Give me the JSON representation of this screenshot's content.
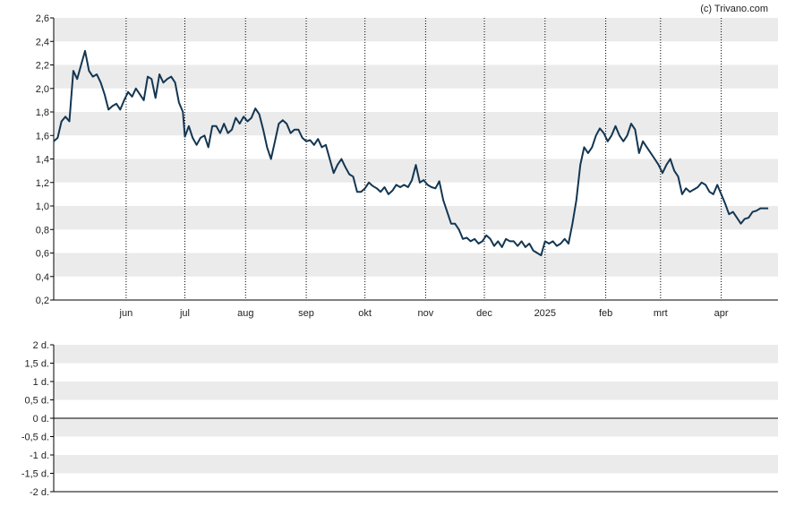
{
  "copyright": "(c) Trivano.com",
  "colors": {
    "line": "#133652",
    "band": "#ebebeb",
    "axis": "#000000",
    "vgrid": "#000000"
  },
  "chart_data": [
    {
      "type": "line",
      "name": "price",
      "ylim": [
        0.2,
        2.6
      ],
      "y_ticks": [
        "0,2",
        "0,4",
        "0,6",
        "0,8",
        "1,0",
        "1,2",
        "1,4",
        "1,6",
        "1,8",
        "2,0",
        "2,2",
        "2,4",
        "2,6"
      ],
      "x_range": [
        "2024-04-25",
        "2025-04-30"
      ],
      "x_ticks": [
        {
          "label": "jun",
          "date": "2024-06-01"
        },
        {
          "label": "jul",
          "date": "2024-07-01"
        },
        {
          "label": "aug",
          "date": "2024-08-01"
        },
        {
          "label": "sep",
          "date": "2024-09-01"
        },
        {
          "label": "okt",
          "date": "2024-10-01"
        },
        {
          "label": "nov",
          "date": "2024-11-01"
        },
        {
          "label": "dec",
          "date": "2024-12-01"
        },
        {
          "label": "2025",
          "date": "2025-01-01"
        },
        {
          "label": "feb",
          "date": "2025-02-01"
        },
        {
          "label": "mrt",
          "date": "2025-03-01"
        },
        {
          "label": "apr",
          "date": "2025-04-01"
        }
      ],
      "grid": "alternating horizontal bands, dotted vertical month lines",
      "points": [
        [
          "2024-04-25",
          1.55
        ],
        [
          "2024-04-27",
          1.58
        ],
        [
          "2024-04-29",
          1.72
        ],
        [
          "2024-05-01",
          1.76
        ],
        [
          "2024-05-03",
          1.72
        ],
        [
          "2024-05-05",
          2.15
        ],
        [
          "2024-05-07",
          2.08
        ],
        [
          "2024-05-09",
          2.2
        ],
        [
          "2024-05-11",
          2.32
        ],
        [
          "2024-05-13",
          2.15
        ],
        [
          "2024-05-15",
          2.1
        ],
        [
          "2024-05-17",
          2.12
        ],
        [
          "2024-05-19",
          2.05
        ],
        [
          "2024-05-21",
          1.95
        ],
        [
          "2024-05-23",
          1.82
        ],
        [
          "2024-05-25",
          1.85
        ],
        [
          "2024-05-27",
          1.87
        ],
        [
          "2024-05-29",
          1.82
        ],
        [
          "2024-05-31",
          1.9
        ],
        [
          "2024-06-02",
          1.97
        ],
        [
          "2024-06-04",
          1.93
        ],
        [
          "2024-06-06",
          2.0
        ],
        [
          "2024-06-08",
          1.95
        ],
        [
          "2024-06-10",
          1.9
        ],
        [
          "2024-06-12",
          2.1
        ],
        [
          "2024-06-14",
          2.08
        ],
        [
          "2024-06-16",
          1.92
        ],
        [
          "2024-06-18",
          2.12
        ],
        [
          "2024-06-20",
          2.05
        ],
        [
          "2024-06-22",
          2.08
        ],
        [
          "2024-06-24",
          2.1
        ],
        [
          "2024-06-26",
          2.05
        ],
        [
          "2024-06-28",
          1.88
        ],
        [
          "2024-06-30",
          1.8
        ],
        [
          "2024-07-01",
          1.59
        ],
        [
          "2024-07-03",
          1.68
        ],
        [
          "2024-07-05",
          1.58
        ],
        [
          "2024-07-07",
          1.52
        ],
        [
          "2024-07-09",
          1.58
        ],
        [
          "2024-07-11",
          1.6
        ],
        [
          "2024-07-13",
          1.5
        ],
        [
          "2024-07-15",
          1.68
        ],
        [
          "2024-07-17",
          1.68
        ],
        [
          "2024-07-19",
          1.62
        ],
        [
          "2024-07-21",
          1.7
        ],
        [
          "2024-07-23",
          1.62
        ],
        [
          "2024-07-25",
          1.65
        ],
        [
          "2024-07-27",
          1.75
        ],
        [
          "2024-07-29",
          1.7
        ],
        [
          "2024-07-31",
          1.76
        ],
        [
          "2024-08-02",
          1.72
        ],
        [
          "2024-08-04",
          1.75
        ],
        [
          "2024-08-06",
          1.83
        ],
        [
          "2024-08-08",
          1.78
        ],
        [
          "2024-08-10",
          1.65
        ],
        [
          "2024-08-12",
          1.5
        ],
        [
          "2024-08-14",
          1.4
        ],
        [
          "2024-08-16",
          1.55
        ],
        [
          "2024-08-18",
          1.7
        ],
        [
          "2024-08-20",
          1.73
        ],
        [
          "2024-08-22",
          1.7
        ],
        [
          "2024-08-24",
          1.62
        ],
        [
          "2024-08-26",
          1.65
        ],
        [
          "2024-08-28",
          1.65
        ],
        [
          "2024-08-30",
          1.58
        ],
        [
          "2024-09-01",
          1.55
        ],
        [
          "2024-09-03",
          1.56
        ],
        [
          "2024-09-05",
          1.52
        ],
        [
          "2024-09-07",
          1.57
        ],
        [
          "2024-09-09",
          1.5
        ],
        [
          "2024-09-11",
          1.52
        ],
        [
          "2024-09-13",
          1.4
        ],
        [
          "2024-09-15",
          1.28
        ],
        [
          "2024-09-17",
          1.35
        ],
        [
          "2024-09-19",
          1.4
        ],
        [
          "2024-09-21",
          1.33
        ],
        [
          "2024-09-23",
          1.27
        ],
        [
          "2024-09-25",
          1.25
        ],
        [
          "2024-09-27",
          1.12
        ],
        [
          "2024-09-29",
          1.12
        ],
        [
          "2024-10-01",
          1.15
        ],
        [
          "2024-10-03",
          1.2
        ],
        [
          "2024-10-05",
          1.17
        ],
        [
          "2024-10-07",
          1.15
        ],
        [
          "2024-10-09",
          1.12
        ],
        [
          "2024-10-11",
          1.16
        ],
        [
          "2024-10-13",
          1.1
        ],
        [
          "2024-10-15",
          1.13
        ],
        [
          "2024-10-17",
          1.18
        ],
        [
          "2024-10-19",
          1.16
        ],
        [
          "2024-10-21",
          1.18
        ],
        [
          "2024-10-23",
          1.16
        ],
        [
          "2024-10-25",
          1.22
        ],
        [
          "2024-10-27",
          1.35
        ],
        [
          "2024-10-29",
          1.2
        ],
        [
          "2024-10-31",
          1.22
        ],
        [
          "2024-11-02",
          1.18
        ],
        [
          "2024-11-04",
          1.16
        ],
        [
          "2024-11-06",
          1.15
        ],
        [
          "2024-11-08",
          1.21
        ],
        [
          "2024-11-10",
          1.05
        ],
        [
          "2024-11-12",
          0.95
        ],
        [
          "2024-11-14",
          0.85
        ],
        [
          "2024-11-16",
          0.85
        ],
        [
          "2024-11-18",
          0.8
        ],
        [
          "2024-11-20",
          0.72
        ],
        [
          "2024-11-22",
          0.73
        ],
        [
          "2024-11-24",
          0.7
        ],
        [
          "2024-11-26",
          0.72
        ],
        [
          "2024-11-28",
          0.68
        ],
        [
          "2024-11-30",
          0.7
        ],
        [
          "2024-12-02",
          0.75
        ],
        [
          "2024-12-04",
          0.72
        ],
        [
          "2024-12-06",
          0.66
        ],
        [
          "2024-12-08",
          0.7
        ],
        [
          "2024-12-10",
          0.65
        ],
        [
          "2024-12-12",
          0.72
        ],
        [
          "2024-12-14",
          0.7
        ],
        [
          "2024-12-16",
          0.7
        ],
        [
          "2024-12-18",
          0.66
        ],
        [
          "2024-12-20",
          0.7
        ],
        [
          "2024-12-22",
          0.65
        ],
        [
          "2024-12-24",
          0.68
        ],
        [
          "2024-12-26",
          0.62
        ],
        [
          "2024-12-28",
          0.6
        ],
        [
          "2024-12-30",
          0.58
        ],
        [
          "2025-01-01",
          0.7
        ],
        [
          "2025-01-03",
          0.68
        ],
        [
          "2025-01-05",
          0.7
        ],
        [
          "2025-01-07",
          0.66
        ],
        [
          "2025-01-09",
          0.68
        ],
        [
          "2025-01-11",
          0.72
        ],
        [
          "2025-01-13",
          0.68
        ],
        [
          "2025-01-15",
          0.85
        ],
        [
          "2025-01-17",
          1.05
        ],
        [
          "2025-01-19",
          1.35
        ],
        [
          "2025-01-21",
          1.5
        ],
        [
          "2025-01-23",
          1.45
        ],
        [
          "2025-01-25",
          1.5
        ],
        [
          "2025-01-27",
          1.6
        ],
        [
          "2025-01-29",
          1.66
        ],
        [
          "2025-01-31",
          1.62
        ],
        [
          "2025-02-02",
          1.55
        ],
        [
          "2025-02-04",
          1.6
        ],
        [
          "2025-02-06",
          1.68
        ],
        [
          "2025-02-08",
          1.6
        ],
        [
          "2025-02-10",
          1.55
        ],
        [
          "2025-02-12",
          1.6
        ],
        [
          "2025-02-14",
          1.7
        ],
        [
          "2025-02-16",
          1.65
        ],
        [
          "2025-02-18",
          1.45
        ],
        [
          "2025-02-20",
          1.55
        ],
        [
          "2025-02-22",
          1.5
        ],
        [
          "2025-02-24",
          1.45
        ],
        [
          "2025-02-26",
          1.4
        ],
        [
          "2025-02-28",
          1.35
        ],
        [
          "2025-03-02",
          1.28
        ],
        [
          "2025-03-04",
          1.35
        ],
        [
          "2025-03-06",
          1.4
        ],
        [
          "2025-03-08",
          1.3
        ],
        [
          "2025-03-10",
          1.25
        ],
        [
          "2025-03-12",
          1.1
        ],
        [
          "2025-03-14",
          1.15
        ],
        [
          "2025-03-16",
          1.12
        ],
        [
          "2025-03-18",
          1.14
        ],
        [
          "2025-03-20",
          1.16
        ],
        [
          "2025-03-22",
          1.2
        ],
        [
          "2025-03-24",
          1.18
        ],
        [
          "2025-03-26",
          1.12
        ],
        [
          "2025-03-28",
          1.1
        ],
        [
          "2025-03-30",
          1.18
        ],
        [
          "2025-04-01",
          1.1
        ],
        [
          "2025-04-03",
          1.02
        ],
        [
          "2025-04-05",
          0.93
        ],
        [
          "2025-04-07",
          0.95
        ],
        [
          "2025-04-09",
          0.9
        ],
        [
          "2025-04-11",
          0.85
        ],
        [
          "2025-04-13",
          0.89
        ],
        [
          "2025-04-15",
          0.9
        ],
        [
          "2025-04-17",
          0.95
        ],
        [
          "2025-04-19",
          0.96
        ],
        [
          "2025-04-21",
          0.98
        ],
        [
          "2025-04-23",
          0.98
        ],
        [
          "2025-04-25",
          0.98
        ]
      ]
    },
    {
      "type": "line",
      "name": "volume",
      "ylim": [
        -2,
        2
      ],
      "y_ticks": [
        "2 d.",
        "1,5 d.",
        "1 d.",
        "0,5 d.",
        "0 d.",
        "-0,5 d.",
        "-1 d.",
        "-1,5 d.",
        "-2 d."
      ],
      "grid": "alternating horizontal bands, solid zero line",
      "points": []
    }
  ]
}
